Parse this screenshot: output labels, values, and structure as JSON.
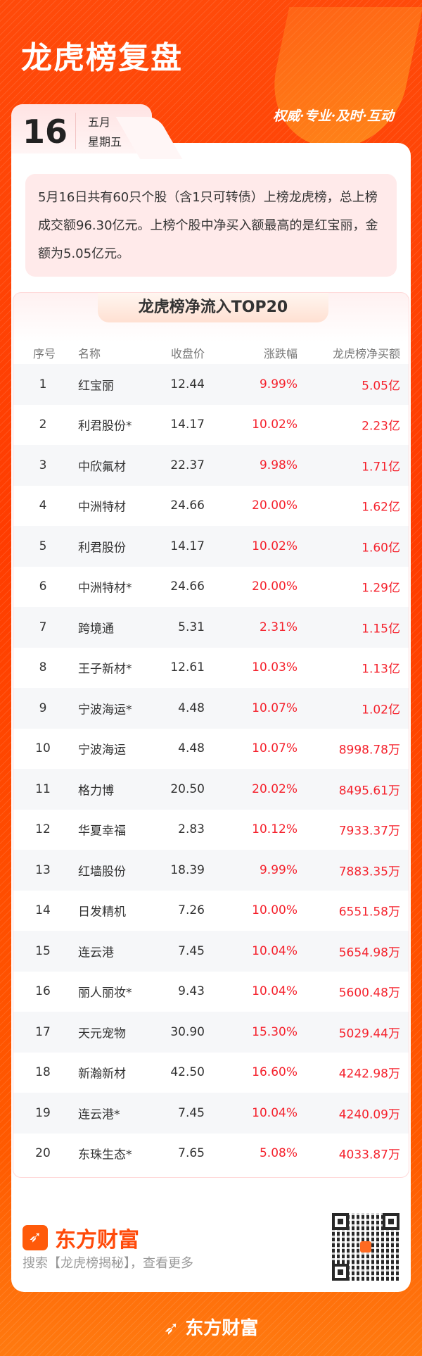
{
  "header": {
    "title": "龙虎榜复盘",
    "slogan": "权威·专业·及时·互动",
    "day": "16",
    "month": "五月",
    "weekday": "星期五"
  },
  "summary": "5月16日共有60只个股（含1只可转债）上榜龙虎榜，总上榜成交额96.30亿元。上榜个股中净买入额最高的是红宝丽，金额为5.05亿元。",
  "table": {
    "title": "龙虎榜净流入TOP20",
    "columns": [
      "序号",
      "名称",
      "收盘价",
      "涨跌幅",
      "龙虎榜净买额"
    ],
    "rows": [
      [
        "1",
        "红宝丽",
        "12.44",
        "9.99%",
        "5.05亿"
      ],
      [
        "2",
        "利君股份*",
        "14.17",
        "10.02%",
        "2.23亿"
      ],
      [
        "3",
        "中欣氟材",
        "22.37",
        "9.98%",
        "1.71亿"
      ],
      [
        "4",
        "中洲特材",
        "24.66",
        "20.00%",
        "1.62亿"
      ],
      [
        "5",
        "利君股份",
        "14.17",
        "10.02%",
        "1.60亿"
      ],
      [
        "6",
        "中洲特材*",
        "24.66",
        "20.00%",
        "1.29亿"
      ],
      [
        "7",
        "跨境通",
        "5.31",
        "2.31%",
        "1.15亿"
      ],
      [
        "8",
        "王子新材*",
        "12.61",
        "10.03%",
        "1.13亿"
      ],
      [
        "9",
        "宁波海运*",
        "4.48",
        "10.07%",
        "1.02亿"
      ],
      [
        "10",
        "宁波海运",
        "4.48",
        "10.07%",
        "8998.78万"
      ],
      [
        "11",
        "格力博",
        "20.50",
        "20.02%",
        "8495.61万"
      ],
      [
        "12",
        "华夏幸福",
        "2.83",
        "10.12%",
        "7933.37万"
      ],
      [
        "13",
        "红墙股份",
        "18.39",
        "9.99%",
        "7883.35万"
      ],
      [
        "14",
        "日发精机",
        "7.26",
        "10.00%",
        "6551.58万"
      ],
      [
        "15",
        "连云港",
        "7.45",
        "10.04%",
        "5654.98万"
      ],
      [
        "16",
        "丽人丽妆*",
        "9.43",
        "10.04%",
        "5600.48万"
      ],
      [
        "17",
        "天元宠物",
        "30.90",
        "15.30%",
        "5029.44万"
      ],
      [
        "18",
        "新瀚新材",
        "42.50",
        "16.60%",
        "4242.98万"
      ],
      [
        "19",
        "连云港*",
        "7.45",
        "10.04%",
        "4240.09万"
      ],
      [
        "20",
        "东珠生态*",
        "7.65",
        "5.08%",
        "4033.87万"
      ]
    ]
  },
  "footer": {
    "brand": "东方财富",
    "search_hint": "搜索【龙虎榜揭秘】，查看更多",
    "bottom_brand": "东方财富",
    "logo_icon": "eastmoney-logo-icon",
    "qr_icon": "qr-code-icon"
  },
  "colors": {
    "background": "#ff4a0a",
    "positive": "#f5222d",
    "zebra": "#f6f7f9"
  }
}
